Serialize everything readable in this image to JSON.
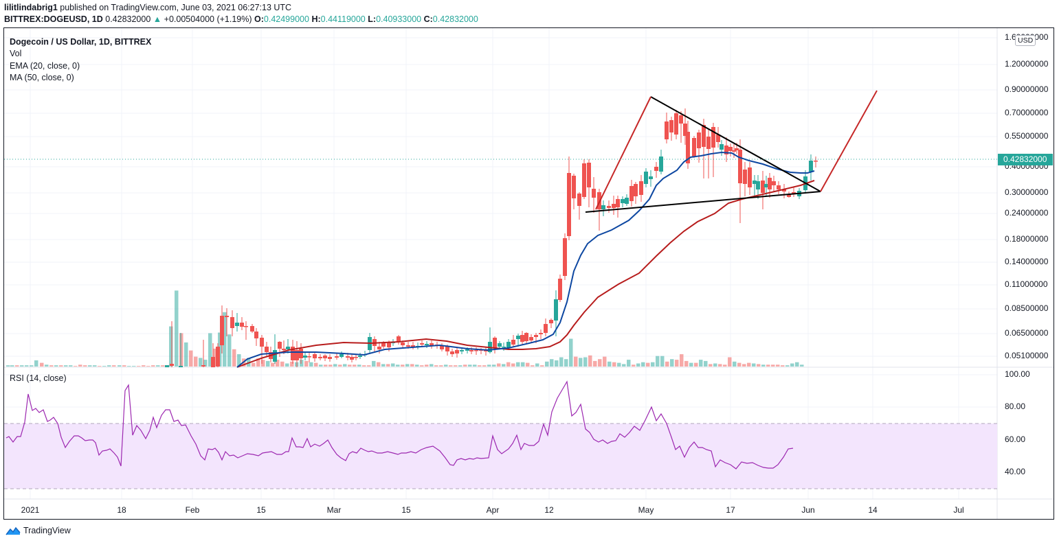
{
  "header": {
    "author": "lilitlindabrig1",
    "published": "published on TradingView.com, June 03, 2021 06:27:13 UTC",
    "symbol": "BITTREX:DOGEUSD, 1D",
    "last": "0.42832000",
    "change": "+0.00504000 (+1.19%)",
    "open_label": "O:",
    "open": "0.42499000",
    "high_label": "H:",
    "high": "0.44119000",
    "low_label": "L:",
    "low": "0.40933000",
    "close_label": "C:",
    "close": "0.42832000"
  },
  "legend": {
    "title": "Dogecoin / US Dollar, 1D, BITTREX",
    "vol": "Vol",
    "ema": "EMA (20, close, 0)",
    "ma": "MA (50, close, 0)"
  },
  "rsi_label": "RSI (14, close)",
  "currency_badge": "USD",
  "price_axis": [
    "1.60000000",
    "1.20000000",
    "0.90000000",
    "0.70000000",
    "0.55000000",
    "0.40000000",
    "0.30000000",
    "0.24000000",
    "0.18000000",
    "0.14000000",
    "0.11000000",
    "0.08500000",
    "0.06500000",
    "0.05100000"
  ],
  "last_price_tag": "0.42832000",
  "rsi_axis": [
    "100.00",
    "80.00",
    "60.00",
    "40.00"
  ],
  "time_axis": [
    "2021",
    "18",
    "Feb",
    "15",
    "Mar",
    "15",
    "Apr",
    "12",
    "May",
    "17",
    "Jun",
    "14",
    "Jul"
  ],
  "footer": {
    "brand": "TradingView"
  },
  "colors": {
    "up": "#26a69a",
    "down": "#ef5350",
    "ema": "#0d47a1",
    "ma": "#b71c1c",
    "rsi": "#9c27b0",
    "rsi_band": "#f3e5fd",
    "drawing_black": "#000000",
    "drawing_red": "#c62828"
  },
  "chart_data": [
    {
      "type": "candlestick",
      "title": "Dogecoin / US Dollar, 1D, BITTREX",
      "scale": "log",
      "ylim": [
        0.048,
        1.65
      ],
      "y_ticks": [
        1.6,
        1.2,
        0.9,
        0.7,
        0.55,
        0.4,
        0.3,
        0.24,
        0.18,
        0.14,
        0.11,
        0.085,
        0.065,
        0.051
      ],
      "x_ticks": [
        "2021",
        "18",
        "Feb",
        "15",
        "Mar",
        "15",
        "Apr",
        "12",
        "May",
        "17",
        "Jun",
        "14",
        "Jul"
      ],
      "last_close": 0.42832,
      "approx_closes": [
        {
          "date": "2021-01-28",
          "close": 0.035
        },
        {
          "date": "2021-02-08",
          "close": 0.078
        },
        {
          "date": "2021-02-15",
          "close": 0.057
        },
        {
          "date": "2021-03-01",
          "close": 0.05
        },
        {
          "date": "2021-03-15",
          "close": 0.058
        },
        {
          "date": "2021-04-01",
          "close": 0.055
        },
        {
          "date": "2021-04-12",
          "close": 0.12
        },
        {
          "date": "2021-04-15",
          "close": 0.39
        },
        {
          "date": "2021-04-19",
          "close": 0.25
        },
        {
          "date": "2021-05-01",
          "close": 0.39
        },
        {
          "date": "2021-05-08",
          "close": 0.68
        },
        {
          "date": "2021-05-16",
          "close": 0.5
        },
        {
          "date": "2021-05-19",
          "close": 0.35
        },
        {
          "date": "2021-05-28",
          "close": 0.3
        },
        {
          "date": "2021-06-03",
          "close": 0.43
        }
      ],
      "indicators": [
        {
          "name": "EMA (20, close, 0)",
          "color": "#0d47a1",
          "end_value": 0.38
        },
        {
          "name": "MA (50, close, 0)",
          "color": "#b71c1c",
          "end_value": 0.37
        }
      ],
      "drawings": [
        {
          "type": "symmetrical-triangle",
          "upper_line": [
            [
              "2021-05-01",
              0.84
            ],
            [
              "2021-06-04",
              0.3
            ]
          ],
          "lower_line": [
            [
              "2021-04-17",
              0.24
            ],
            [
              "2021-06-04",
              0.3
            ]
          ]
        },
        {
          "type": "projection",
          "color": "#c62828",
          "points": [
            [
              "2021-04-18",
              0.24
            ],
            [
              "2021-05-01",
              0.84
            ]
          ],
          "target": [
            [
              "2021-06-04",
              0.3
            ],
            [
              "2021-06-15",
              0.88
            ]
          ]
        }
      ]
    },
    {
      "type": "bar",
      "title": "Vol",
      "note": "volume histogram, peak late January and mid-April"
    },
    {
      "type": "line",
      "title": "RSI (14, close)",
      "ylim": [
        25,
        100
      ],
      "y_ticks": [
        100,
        80,
        60,
        40
      ],
      "bands": [
        30,
        70
      ],
      "approx_values": [
        {
          "date": "2021-01-01",
          "value": 61
        },
        {
          "date": "2021-01-06",
          "value": 89
        },
        {
          "date": "2021-01-15",
          "value": 72
        },
        {
          "date": "2021-01-27",
          "value": 44
        },
        {
          "date": "2021-01-29",
          "value": 94
        },
        {
          "date": "2021-02-09",
          "value": 78
        },
        {
          "date": "2021-02-20",
          "value": 55
        },
        {
          "date": "2021-03-01",
          "value": 51
        },
        {
          "date": "2021-03-08",
          "value": 63
        },
        {
          "date": "2021-03-30",
          "value": 47
        },
        {
          "date": "2021-04-02",
          "value": 63
        },
        {
          "date": "2021-04-16",
          "value": 95
        },
        {
          "date": "2021-04-20",
          "value": 70
        },
        {
          "date": "2021-05-07",
          "value": 81
        },
        {
          "date": "2021-05-20",
          "value": 44
        },
        {
          "date": "2021-05-29",
          "value": 43
        },
        {
          "date": "2021-06-03",
          "value": 55
        }
      ]
    }
  ]
}
